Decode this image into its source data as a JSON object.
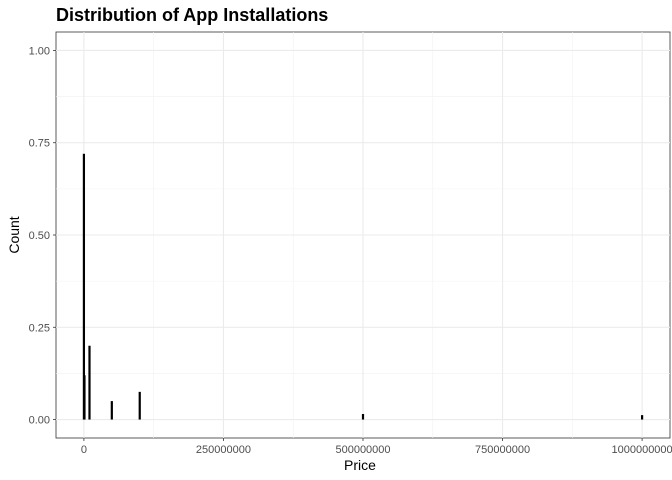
{
  "chart_data": {
    "type": "bar",
    "title": "Distribution of App Installations",
    "xlabel": "Price",
    "ylabel": "Count",
    "xlim": [
      -50000000,
      1050000000
    ],
    "ylim": [
      -0.05,
      1.05
    ],
    "x_ticks": [
      0,
      250000000,
      500000000,
      750000000,
      1000000000
    ],
    "x_tick_labels": [
      "0",
      "250000000",
      "500000000",
      "750000000",
      "1000000000"
    ],
    "y_ticks": [
      0.0,
      0.25,
      0.5,
      0.75,
      1.0
    ],
    "y_tick_labels": [
      "0.00",
      "0.25",
      "0.50",
      "0.75",
      "1.00"
    ],
    "grid": true,
    "bar_color": "#000000",
    "bars": [
      {
        "x": 0,
        "value": 0.72
      },
      {
        "x": 1000000,
        "value": 0.12
      },
      {
        "x": 10000000,
        "value": 0.2
      },
      {
        "x": 50000000,
        "value": 0.05
      },
      {
        "x": 100000000,
        "value": 0.075
      },
      {
        "x": 500000000,
        "value": 0.015
      },
      {
        "x": 1000000000,
        "value": 0.012
      }
    ]
  }
}
